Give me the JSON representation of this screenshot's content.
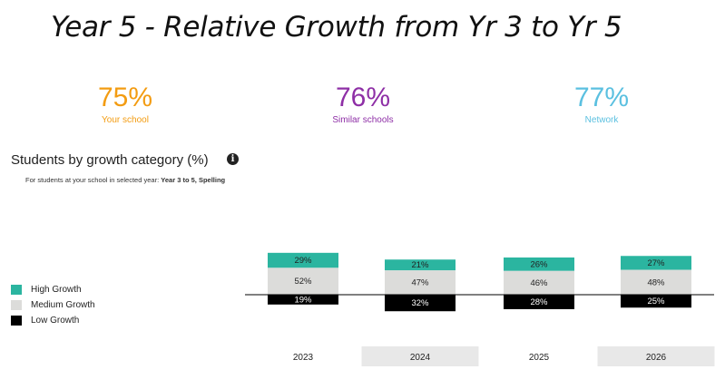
{
  "page_title": "Year 5 - Relative Growth from Yr 3 to Yr 5",
  "metrics": {
    "school": {
      "value": "75%",
      "label": "Your school",
      "color": "#f39c12"
    },
    "similar": {
      "value": "76%",
      "label": "Similar schools",
      "color": "#8e2fa6"
    },
    "network": {
      "value": "77%",
      "label": "Network",
      "color": "#5bc0e0"
    }
  },
  "info_icon": "info-icon",
  "chart_data": {
    "type": "bar",
    "title": "Students by growth category (%)",
    "subtitle_prefix": "For students at your school in selected year:",
    "subtitle_selection": "Year 3 to 5, Spelling",
    "categories": [
      "2023",
      "2024",
      "2025",
      "2026"
    ],
    "highlighted_categories": [
      "2024",
      "2026"
    ],
    "stacked": true,
    "baseline": "diverging at Medium/Low boundary",
    "series": [
      {
        "name": "High Growth",
        "color": "#2bb5a0",
        "values": [
          29,
          21,
          26,
          27
        ],
        "labels": [
          "29%",
          "21%",
          "26%",
          "27%"
        ]
      },
      {
        "name": "Medium Growth",
        "color": "#dcdcda",
        "values": [
          52,
          47,
          46,
          48
        ],
        "labels": [
          "52%",
          "47%",
          "46%",
          "48%"
        ]
      },
      {
        "name": "Low Growth",
        "color": "#000000",
        "values": [
          19,
          32,
          28,
          25
        ],
        "labels": [
          "19%",
          "32%",
          "28%",
          "25%"
        ]
      }
    ],
    "legend_position": "left"
  }
}
